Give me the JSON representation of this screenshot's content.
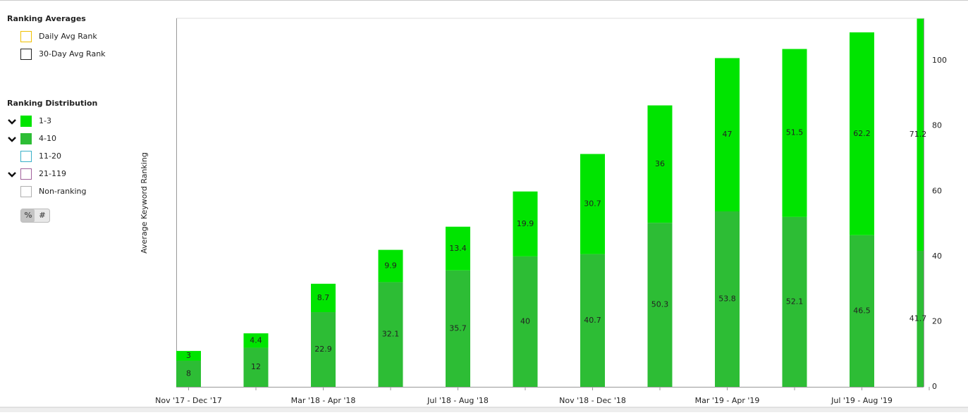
{
  "chart_data": {
    "type": "bar",
    "stacked": true,
    "y_label": "Average Keyword Ranking",
    "categories": [
      "Nov '17 - Dec '17",
      null,
      "Mar '18 - Apr '18",
      null,
      "Jul '18 - Aug '18",
      null,
      "Nov '18 - Dec '18",
      null,
      "Mar '19 - Apr '19",
      null,
      "Jul '19 - Aug '19",
      null
    ],
    "series": [
      {
        "name": "4-10",
        "color": "#2dbd35",
        "values": [
          8,
          12,
          22.9,
          32.1,
          35.7,
          40,
          40.7,
          50.3,
          53.8,
          52.1,
          46.5,
          41.7
        ]
      },
      {
        "name": "1-3",
        "color": "#00e400",
        "values": [
          3,
          4.4,
          8.7,
          9.9,
          13.4,
          19.9,
          30.7,
          36,
          47,
          51.5,
          62.2,
          71.2
        ]
      }
    ],
    "ylim": [
      0,
      113
    ],
    "yticks": [
      0,
      20,
      40,
      60,
      80,
      100
    ],
    "y_axis_side": "right",
    "grid": false
  },
  "panel": {
    "averages_title": "Ranking Averages",
    "averages": [
      {
        "label": "Daily Avg Rank",
        "color": "#f0c000"
      },
      {
        "label": "30-Day Avg Rank",
        "color": "#222222"
      }
    ],
    "distribution_title": "Ranking Distribution",
    "distribution_extra": [
      {
        "label": "11-20",
        "color": "#3ab0c8"
      },
      {
        "label": "21-119",
        "color": "#a0609a"
      },
      {
        "label": "Non-ranking",
        "color": "#b0b0b0"
      }
    ],
    "toggle": [
      "%",
      "#"
    ]
  }
}
